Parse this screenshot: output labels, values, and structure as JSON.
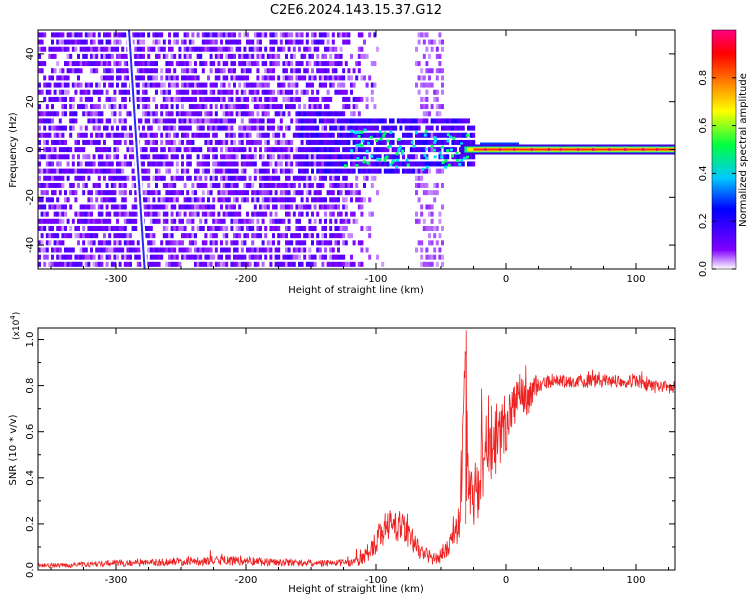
{
  "title": "C2E6.2024.143.15.37.G12",
  "chart_data": [
    {
      "type": "heatmap",
      "xlabel": "Height of straight line (km)",
      "ylabel": "Frequency (Hz)",
      "xlim": [
        -360,
        130
      ],
      "ylim": [
        -50,
        50
      ],
      "x_ticks": [
        -300,
        -200,
        -100,
        0,
        100
      ],
      "y_ticks": [
        -40,
        -20,
        0,
        20,
        40
      ],
      "colorbar": {
        "label": "Normalized spectral amplitude",
        "range": [
          0,
          1
        ],
        "ticks": [
          "0.0",
          "0.2",
          "0.4",
          "0.6",
          "0.8"
        ],
        "tick_values": [
          0,
          0.2,
          0.4,
          0.6,
          0.8
        ],
        "colors": [
          "#ffffff",
          "#8000ff",
          "#0000ff",
          "#00c8ff",
          "#00ff40",
          "#ffff00",
          "#ff8000",
          "#ff0000",
          "#ff0080"
        ]
      },
      "features": {
        "diffuse_band_x_range": [
          -360,
          -95
        ],
        "diagonal_streak": {
          "x_start": -290,
          "y_start": 50,
          "x_end": -278,
          "y_end": -50
        },
        "clutter_columns_x_range": [
          -70,
          -50
        ],
        "narrowband_line": {
          "frequency_hz": 0,
          "x_range": [
            -30,
            130
          ],
          "max_amplitude": 0.95
        }
      }
    },
    {
      "type": "line",
      "xlabel": "Height of straight line (km)",
      "ylabel": "SNR (10 * v/v)",
      "y_multiplier": "(x10",
      "y_multiplier_exp": "4",
      "y_multiplier_close": ")",
      "xlim": [
        -360,
        130
      ],
      "ylim": [
        0,
        1.05
      ],
      "x_ticks": [
        -300,
        -200,
        -100,
        0,
        100
      ],
      "y_ticks": [
        "0.0",
        "0.2",
        "0.4",
        "0.6",
        "0.8",
        "1.0"
      ],
      "y_tick_values": [
        0,
        0.2,
        0.4,
        0.6,
        0.8,
        1.0
      ],
      "series": [
        {
          "color": "#ee2222",
          "x": [
            -360,
            -340,
            -320,
            -300,
            -280,
            -260,
            -240,
            -220,
            -200,
            -180,
            -160,
            -140,
            -120,
            -110,
            -105,
            -100,
            -95,
            -90,
            -85,
            -80,
            -75,
            -70,
            -65,
            -60,
            -55,
            -50,
            -45,
            -40,
            -36,
            -33,
            -31,
            -30,
            -29,
            -27,
            -25,
            -20,
            -15,
            -10,
            -5,
            0,
            5,
            10,
            15,
            20,
            25,
            30,
            40,
            60,
            80,
            100,
            110,
            120,
            130
          ],
          "y": [
            0.02,
            0.02,
            0.025,
            0.03,
            0.03,
            0.035,
            0.04,
            0.04,
            0.04,
            0.035,
            0.03,
            0.03,
            0.03,
            0.05,
            0.09,
            0.12,
            0.17,
            0.19,
            0.2,
            0.18,
            0.15,
            0.12,
            0.08,
            0.06,
            0.05,
            0.06,
            0.09,
            0.14,
            0.22,
            0.55,
            0.98,
            0.7,
            0.35,
            0.3,
            0.33,
            0.4,
            0.5,
            0.55,
            0.6,
            0.65,
            0.7,
            0.75,
            0.72,
            0.78,
            0.8,
            0.81,
            0.82,
            0.82,
            0.82,
            0.82,
            0.8,
            0.79,
            0.79
          ],
          "noise_amplitude": [
            0.01,
            0.01,
            0.012,
            0.015,
            0.015,
            0.018,
            0.02,
            0.022,
            0.02,
            0.018,
            0.015,
            0.015,
            0.015,
            0.03,
            0.05,
            0.06,
            0.07,
            0.08,
            0.08,
            0.07,
            0.06,
            0.05,
            0.04,
            0.03,
            0.03,
            0.03,
            0.04,
            0.06,
            0.09,
            0.2,
            0.08,
            0.2,
            0.12,
            0.12,
            0.15,
            0.18,
            0.18,
            0.17,
            0.16,
            0.14,
            0.12,
            0.1,
            0.09,
            0.06,
            0.04,
            0.03,
            0.03,
            0.03,
            0.03,
            0.03,
            0.03,
            0.03,
            0.03
          ]
        }
      ]
    }
  ]
}
